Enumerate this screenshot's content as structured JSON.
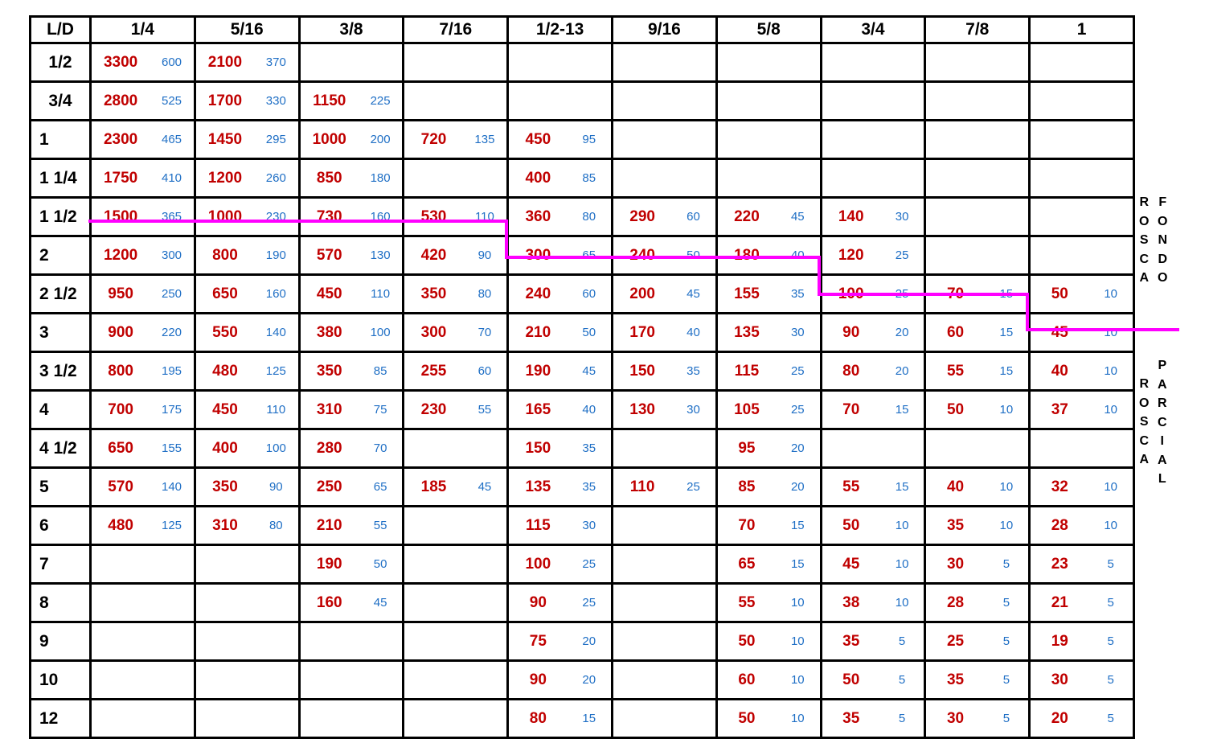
{
  "table": {
    "corner_label": "L/D",
    "columns": [
      "1/4",
      "5/16",
      "3/8",
      "7/16",
      "1/2-13",
      "9/16",
      "5/8",
      "3/4",
      "7/8",
      "1"
    ],
    "rows": [
      {
        "label": "1/2",
        "cells": [
          [
            "3300",
            "600"
          ],
          [
            "2100",
            "370"
          ],
          null,
          null,
          null,
          null,
          null,
          null,
          null,
          null
        ]
      },
      {
        "label": "3/4",
        "cells": [
          [
            "2800",
            "525"
          ],
          [
            "1700",
            "330"
          ],
          [
            "1150",
            "225"
          ],
          null,
          null,
          null,
          null,
          null,
          null,
          null
        ]
      },
      {
        "label": "1",
        "cells": [
          [
            "2300",
            "465"
          ],
          [
            "1450",
            "295"
          ],
          [
            "1000",
            "200"
          ],
          [
            "720",
            "135"
          ],
          [
            "450",
            "95"
          ],
          null,
          null,
          null,
          null,
          null
        ]
      },
      {
        "label": "1 1/4",
        "cells": [
          [
            "1750",
            "410"
          ],
          [
            "1200",
            "260"
          ],
          [
            "850",
            "180"
          ],
          null,
          [
            "400",
            "85"
          ],
          null,
          null,
          null,
          null,
          null
        ]
      },
      {
        "label": "1 1/2",
        "cells": [
          [
            "1500",
            "365"
          ],
          [
            "1000",
            "230"
          ],
          [
            "730",
            "160"
          ],
          [
            "530",
            "110"
          ],
          [
            "360",
            "80"
          ],
          [
            "290",
            "60"
          ],
          [
            "220",
            "45"
          ],
          [
            "140",
            "30"
          ],
          null,
          null
        ]
      },
      {
        "label": "2",
        "cells": [
          [
            "1200",
            "300"
          ],
          [
            "800",
            "190"
          ],
          [
            "570",
            "130"
          ],
          [
            "420",
            "90"
          ],
          [
            "300",
            "65"
          ],
          [
            "240",
            "50"
          ],
          [
            "180",
            "40"
          ],
          [
            "120",
            "25"
          ],
          null,
          null
        ]
      },
      {
        "label": "2 1/2",
        "cells": [
          [
            "950",
            "250"
          ],
          [
            "650",
            "160"
          ],
          [
            "450",
            "110"
          ],
          [
            "350",
            "80"
          ],
          [
            "240",
            "60"
          ],
          [
            "200",
            "45"
          ],
          [
            "155",
            "35"
          ],
          [
            "100",
            "25"
          ],
          [
            "70",
            "15"
          ],
          [
            "50",
            "10"
          ]
        ]
      },
      {
        "label": "3",
        "cells": [
          [
            "900",
            "220"
          ],
          [
            "550",
            "140"
          ],
          [
            "380",
            "100"
          ],
          [
            "300",
            "70"
          ],
          [
            "210",
            "50"
          ],
          [
            "170",
            "40"
          ],
          [
            "135",
            "30"
          ],
          [
            "90",
            "20"
          ],
          [
            "60",
            "15"
          ],
          [
            "45",
            "10"
          ]
        ]
      },
      {
        "label": "3 1/2",
        "cells": [
          [
            "800",
            "195"
          ],
          [
            "480",
            "125"
          ],
          [
            "350",
            "85"
          ],
          [
            "255",
            "60"
          ],
          [
            "190",
            "45"
          ],
          [
            "150",
            "35"
          ],
          [
            "115",
            "25"
          ],
          [
            "80",
            "20"
          ],
          [
            "55",
            "15"
          ],
          [
            "40",
            "10"
          ]
        ]
      },
      {
        "label": "4",
        "cells": [
          [
            "700",
            "175"
          ],
          [
            "450",
            "110"
          ],
          [
            "310",
            "75"
          ],
          [
            "230",
            "55"
          ],
          [
            "165",
            "40"
          ],
          [
            "130",
            "30"
          ],
          [
            "105",
            "25"
          ],
          [
            "70",
            "15"
          ],
          [
            "50",
            "10"
          ],
          [
            "37",
            "10"
          ]
        ]
      },
      {
        "label": "4 1/2",
        "cells": [
          [
            "650",
            "155"
          ],
          [
            "400",
            "100"
          ],
          [
            "280",
            "70"
          ],
          null,
          [
            "150",
            "35"
          ],
          null,
          [
            "95",
            "20"
          ],
          null,
          null,
          null
        ]
      },
      {
        "label": "5",
        "cells": [
          [
            "570",
            "140"
          ],
          [
            "350",
            "90"
          ],
          [
            "250",
            "65"
          ],
          [
            "185",
            "45"
          ],
          [
            "135",
            "35"
          ],
          [
            "110",
            "25"
          ],
          [
            "85",
            "20"
          ],
          [
            "55",
            "15"
          ],
          [
            "40",
            "10"
          ],
          [
            "32",
            "10"
          ]
        ]
      },
      {
        "label": "6",
        "cells": [
          [
            "480",
            "125"
          ],
          [
            "310",
            "80"
          ],
          [
            "210",
            "55"
          ],
          null,
          [
            "115",
            "30"
          ],
          null,
          [
            "70",
            "15"
          ],
          [
            "50",
            "10"
          ],
          [
            "35",
            "10"
          ],
          [
            "28",
            "10"
          ]
        ]
      },
      {
        "label": "7",
        "cells": [
          null,
          null,
          [
            "190",
            "50"
          ],
          null,
          [
            "100",
            "25"
          ],
          null,
          [
            "65",
            "15"
          ],
          [
            "45",
            "10"
          ],
          [
            "30",
            "5"
          ],
          [
            "23",
            "5"
          ]
        ]
      },
      {
        "label": "8",
        "cells": [
          null,
          null,
          [
            "160",
            "45"
          ],
          null,
          [
            "90",
            "25"
          ],
          null,
          [
            "55",
            "10"
          ],
          [
            "38",
            "10"
          ],
          [
            "28",
            "5"
          ],
          [
            "21",
            "5"
          ]
        ]
      },
      {
        "label": "9",
        "cells": [
          null,
          null,
          null,
          null,
          [
            "75",
            "20"
          ],
          null,
          [
            "50",
            "10"
          ],
          [
            "35",
            "5"
          ],
          [
            "25",
            "5"
          ],
          [
            "19",
            "5"
          ]
        ]
      },
      {
        "label": "10",
        "cells": [
          null,
          null,
          null,
          null,
          [
            "90",
            "20"
          ],
          null,
          [
            "60",
            "10"
          ],
          [
            "50",
            "5"
          ],
          [
            "35",
            "5"
          ],
          [
            "30",
            "5"
          ]
        ]
      },
      {
        "label": "12",
        "cells": [
          null,
          null,
          null,
          null,
          [
            "80",
            "15"
          ],
          null,
          [
            "50",
            "10"
          ],
          [
            "35",
            "5"
          ],
          [
            "30",
            "5"
          ],
          [
            "20",
            "5"
          ]
        ]
      }
    ]
  },
  "side_labels": {
    "top_left": "ROSCA",
    "top_right": "FONDO",
    "bottom_left": "ROSCA",
    "bottom_right": "PARCIAL"
  },
  "colors": {
    "primary_value": "#c00000",
    "secondary_value": "#1f6fc5",
    "boundary_line": "#ff00ff",
    "grid": "#000000"
  }
}
